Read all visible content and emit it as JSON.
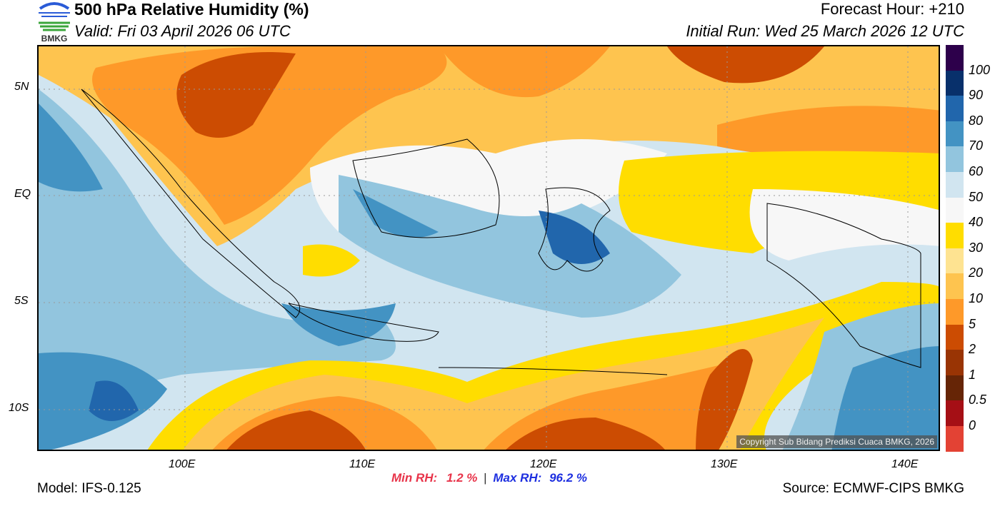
{
  "header": {
    "title": "500 hPa Relative Humidity (%)",
    "valid": "Valid: Fri 03 April 2026 06 UTC",
    "forecast_hour": "Forecast Hour: +210",
    "initial_run": "Initial Run: Wed 25 March 2026 12 UTC",
    "logo_text": "BMKG"
  },
  "map": {
    "copyright": "Copyright Sub Bidang Prediksi Cuaca BMKG, 2026",
    "lat_labels": [
      "5N",
      "EQ",
      "5S",
      "10S"
    ],
    "lon_labels": [
      "100E",
      "110E",
      "120E",
      "130E",
      "140E"
    ]
  },
  "colorbar": {
    "labels": [
      "100",
      "90",
      "80",
      "70",
      "60",
      "50",
      "40",
      "30",
      "20",
      "10",
      "5",
      "2",
      "1",
      "0.5",
      "0"
    ],
    "colors": [
      "#2d004b",
      "#08306b",
      "#2166ac",
      "#4393c3",
      "#92c5de",
      "#d1e5f0",
      "#f7f7f7",
      "#ffdd00",
      "#fee391",
      "#fec44f",
      "#fe9929",
      "#cc4c02",
      "#993404",
      "#662506",
      "#a50f15",
      "#e34234"
    ]
  },
  "footer": {
    "min_label": "Min RH:",
    "min_value": "1.2 %",
    "separator": "|",
    "max_label": "Max RH:",
    "max_value": "96.2 %",
    "model": "Model: IFS-0.125",
    "source": "Source: ECMWF-CIPS BMKG"
  }
}
